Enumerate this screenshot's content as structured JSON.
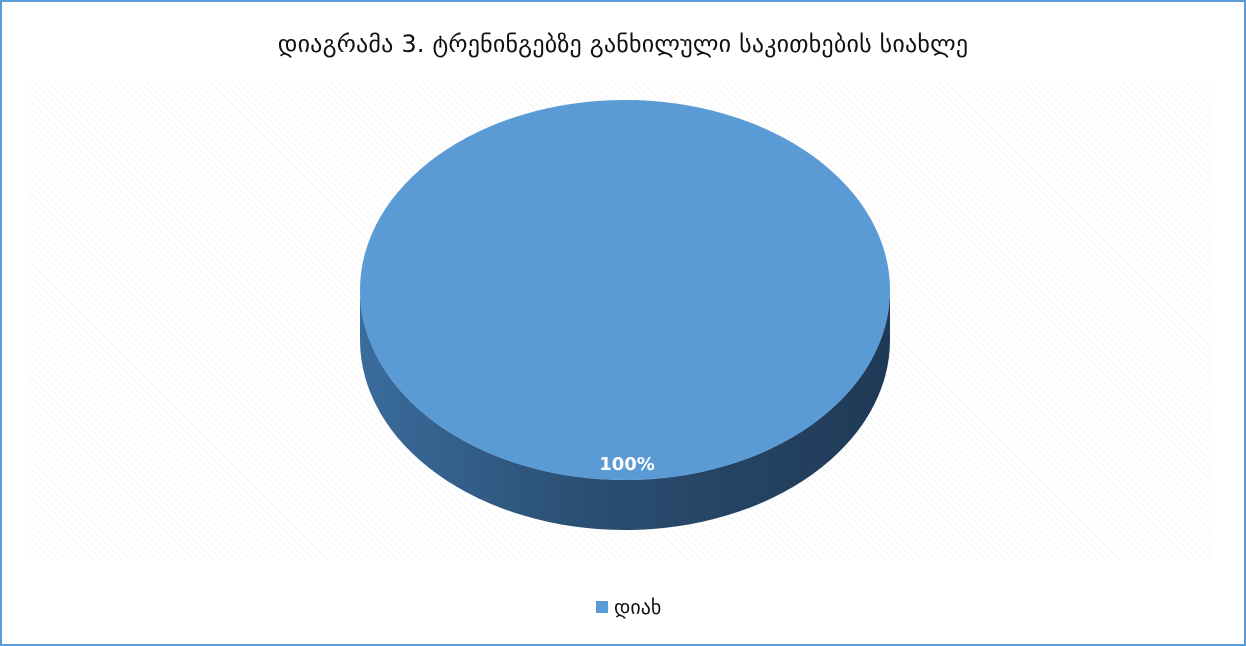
{
  "chart_data": {
    "type": "pie",
    "title": "დიაგრამა 3. ტრენინგებზე განხილული საკითხების სიახლე",
    "slices": [
      {
        "label": "დიახ",
        "value": 100,
        "data_label": "100%",
        "color": "#5b9bd5"
      }
    ],
    "legend_position": "bottom",
    "three_d": true
  }
}
